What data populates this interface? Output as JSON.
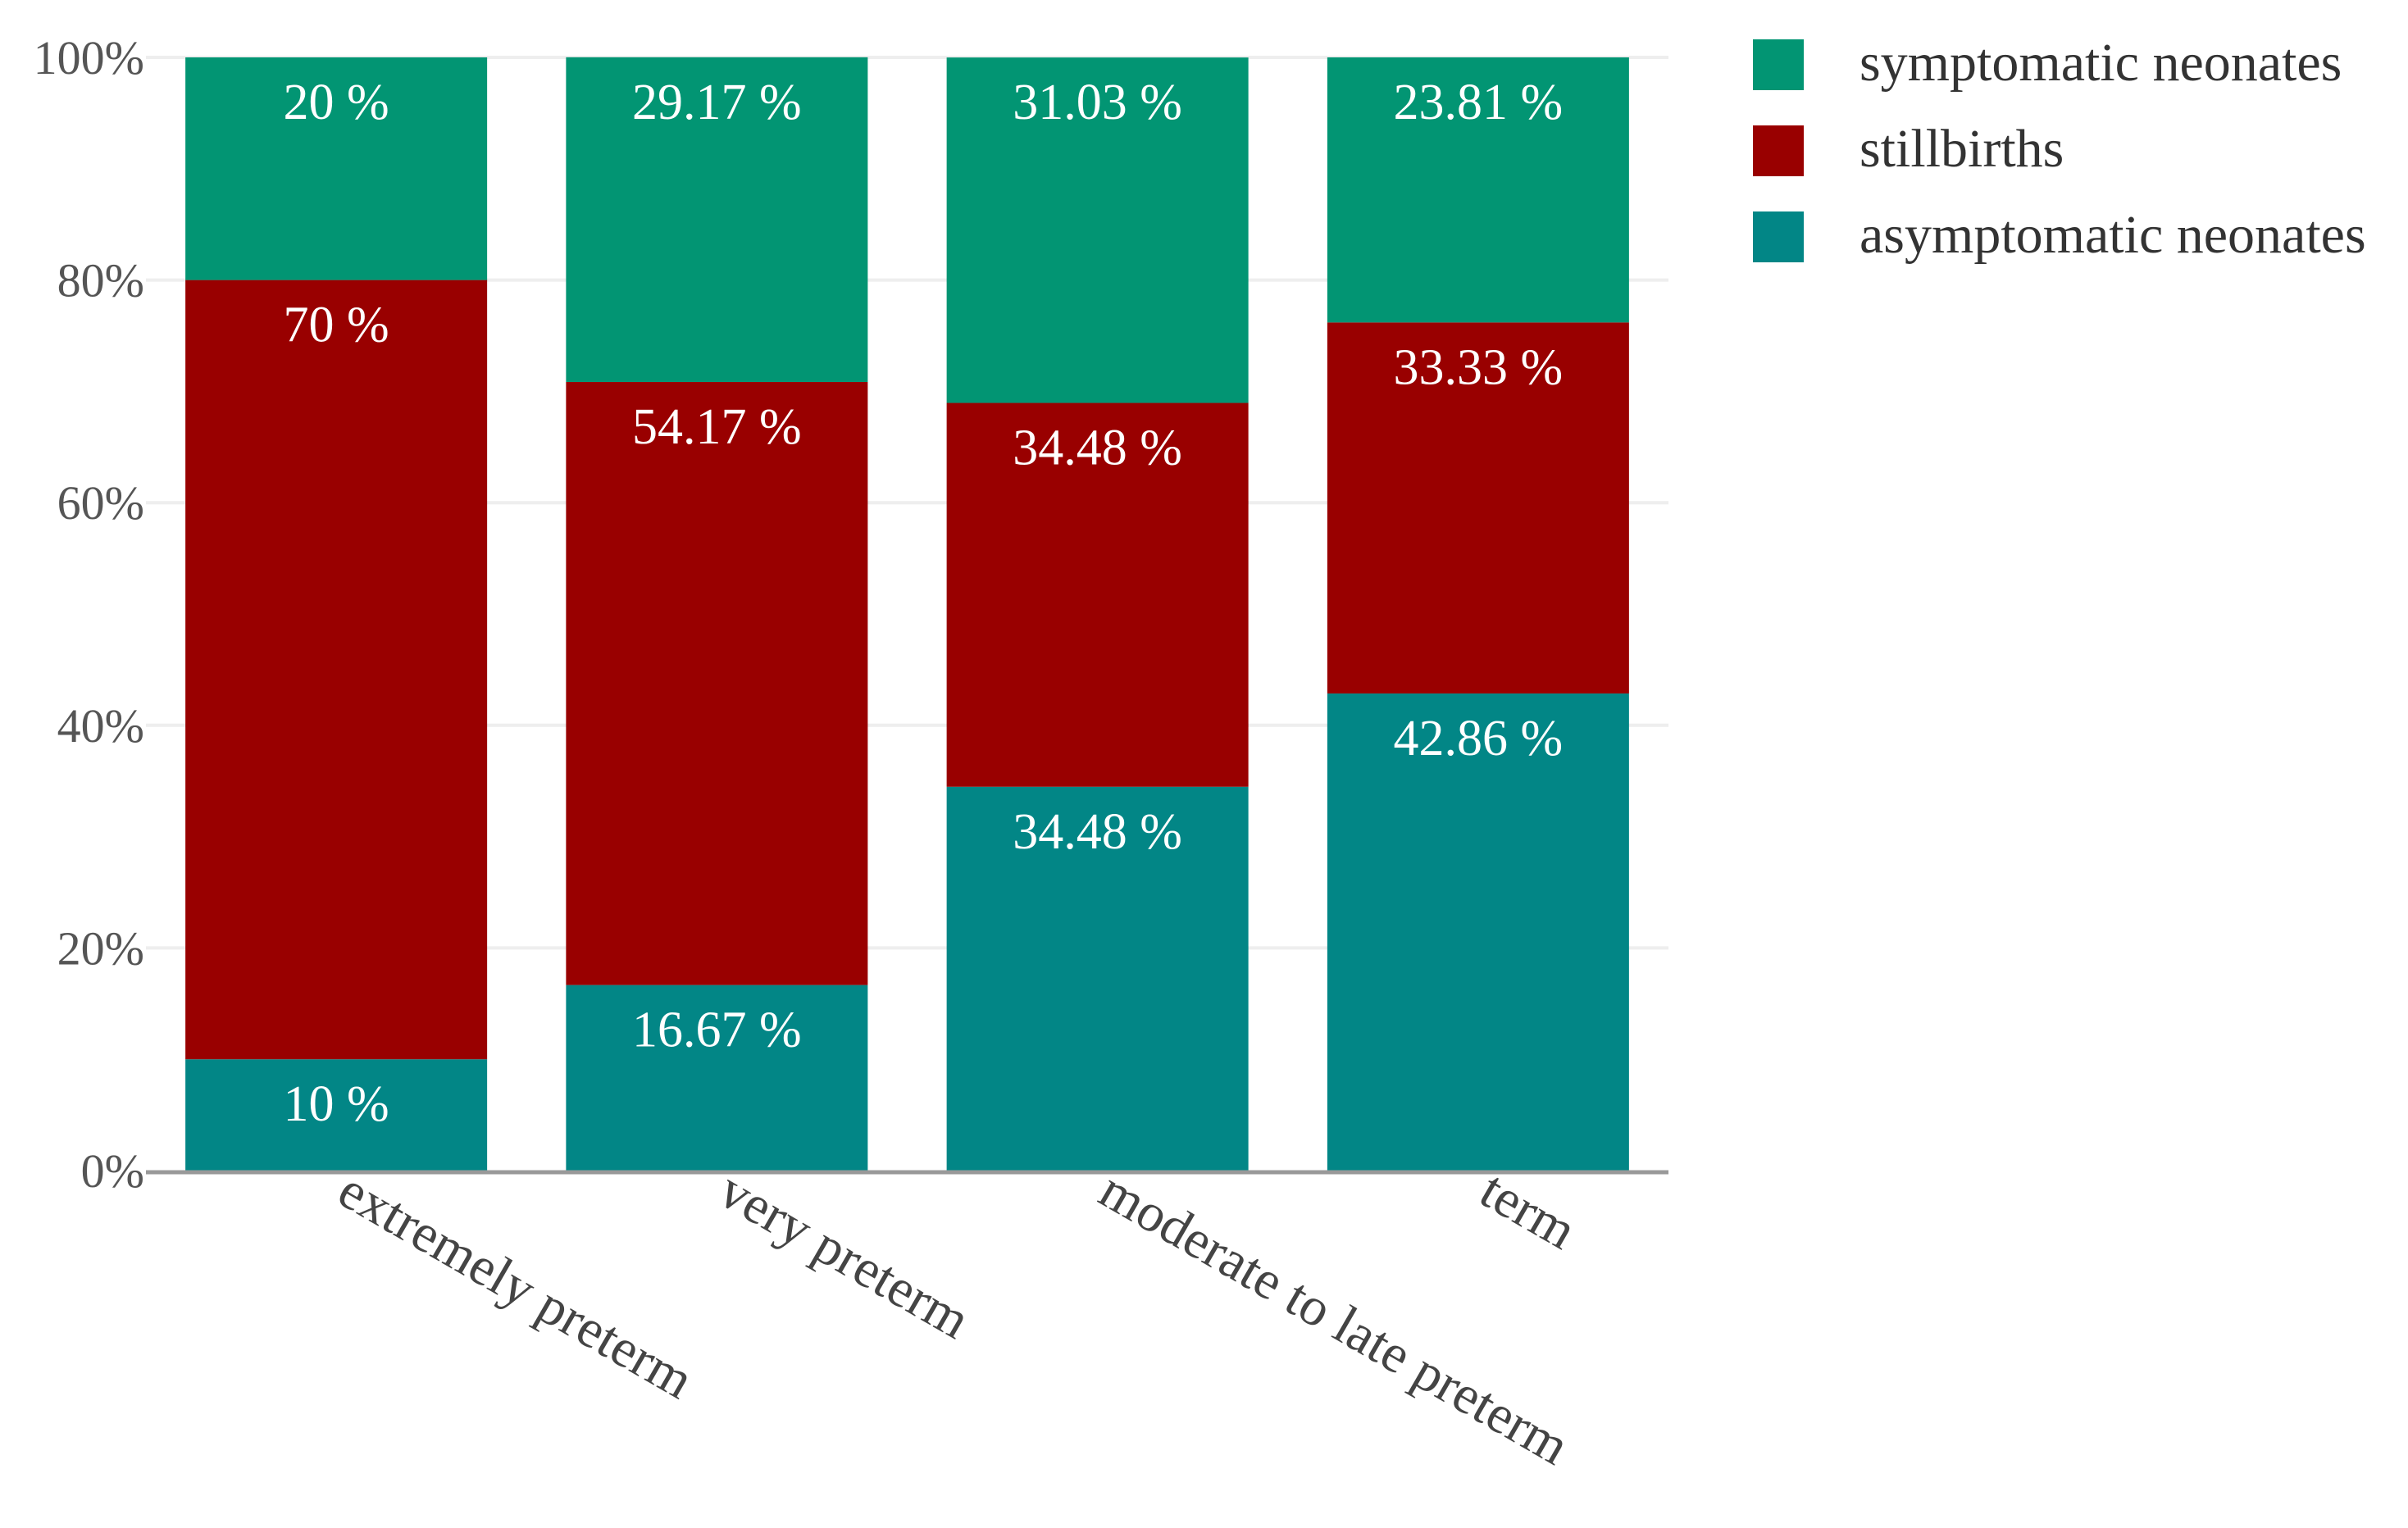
{
  "chart_data": {
    "type": "bar",
    "stacked": true,
    "percent": true,
    "categories": [
      "extremely preterm",
      "very preterm",
      "moderate to late preterm",
      "term"
    ],
    "series": [
      {
        "name": "asymptomatic neonates",
        "color": "#028686",
        "values": [
          10,
          16.67,
          34.48,
          42.86
        ],
        "labels": [
          "10 %",
          "16.67 %",
          "34.48 %",
          "42.86 %"
        ]
      },
      {
        "name": "stillbirths",
        "color": "#990000",
        "values": [
          70,
          54.17,
          34.48,
          33.33
        ],
        "labels": [
          "70 %",
          "54.17 %",
          "34.48 %",
          "33.33 %"
        ]
      },
      {
        "name": "symptomatic neonates",
        "color": "#029573",
        "values": [
          20,
          29.17,
          31.03,
          23.81
        ],
        "labels": [
          "20 %",
          "29.17 %",
          "31.03 %",
          "23.81 %"
        ]
      }
    ],
    "legend_order": [
      "symptomatic neonates",
      "stillbirths",
      "asymptomatic neonates"
    ],
    "y_ticks": [
      "0%",
      "20%",
      "40%",
      "60%",
      "80%",
      "100%"
    ],
    "ylim": [
      0,
      100
    ],
    "grid": true,
    "legend_position": "top-right",
    "xlabel": "",
    "ylabel": "",
    "title": ""
  }
}
